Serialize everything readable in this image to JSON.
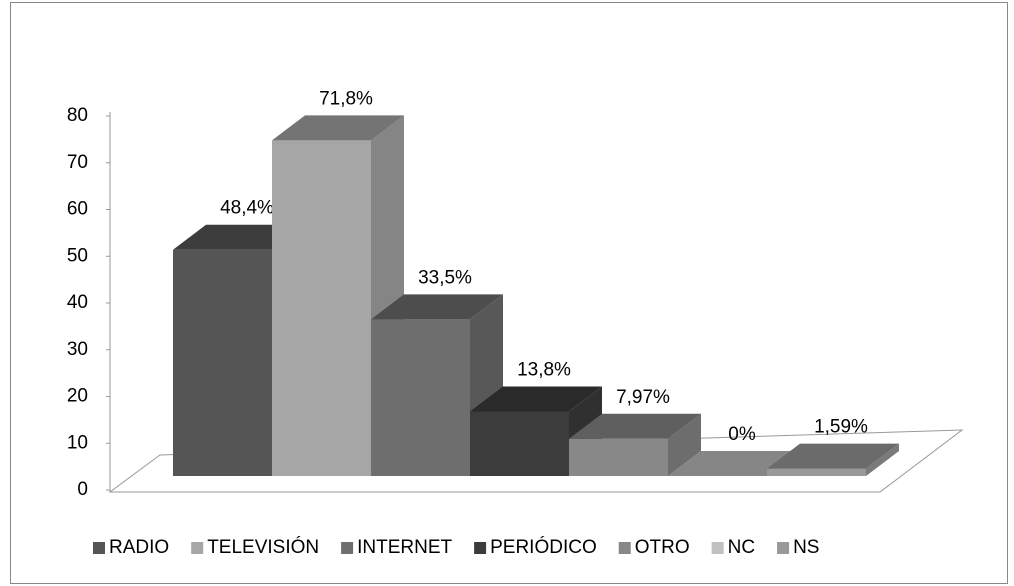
{
  "chart_data": {
    "type": "bar3d",
    "categories": [
      "RADIO",
      "TELEVISIÓN",
      "INTERNET",
      "PERIÓDICO",
      "OTRO",
      "NC",
      "NS"
    ],
    "values": [
      48.4,
      71.8,
      33.5,
      13.8,
      7.97,
      0,
      1.59
    ],
    "value_labels": [
      "48,4%",
      "71,8%",
      "33,5%",
      "13,8%",
      "7,97%",
      "0%",
      "1,59%"
    ],
    "colors": [
      "#555555",
      "#a6a6a6",
      "#6e6e6e",
      "#3c3c3c",
      "#888888",
      "#c0c0c0",
      "#999999"
    ],
    "ylim": [
      0,
      80
    ],
    "yticks": [
      0,
      10,
      20,
      30,
      40,
      50,
      60,
      70,
      80
    ],
    "legend": "bottom"
  }
}
